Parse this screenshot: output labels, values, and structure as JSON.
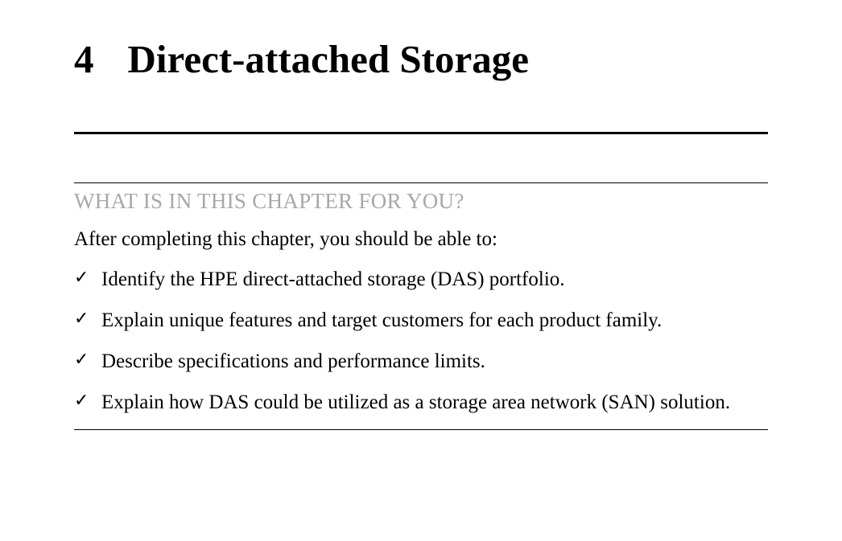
{
  "chapter": {
    "number": "4",
    "title": "Direct-attached Storage"
  },
  "section": {
    "header": "WHAT IS IN THIS CHAPTER FOR YOU?",
    "intro": "After completing this chapter, you should be able to:",
    "items": [
      {
        "mark": "✓",
        "text": "Identify the HPE direct-attached storage (DAS) portfolio.",
        "justified": false
      },
      {
        "mark": "✓",
        "text": "Explain unique features and target customers for each product family.",
        "justified": false
      },
      {
        "mark": "✓",
        "text": "Describe specifications and performance limits.",
        "justified": false
      },
      {
        "mark": "✓",
        "text": "Explain how DAS could be utilized as a storage area network (SAN) solution.",
        "justified": true
      }
    ]
  },
  "colors": {
    "text": "#000000",
    "muted": "#a8a8a8",
    "background": "#ffffff",
    "rule_thick": "#000000",
    "rule_thin": "#000000"
  },
  "typography": {
    "heading_fontsize": 49,
    "section_header_fontsize": 27,
    "body_fontsize": 25,
    "font_family": "Georgia, Times New Roman, serif"
  }
}
